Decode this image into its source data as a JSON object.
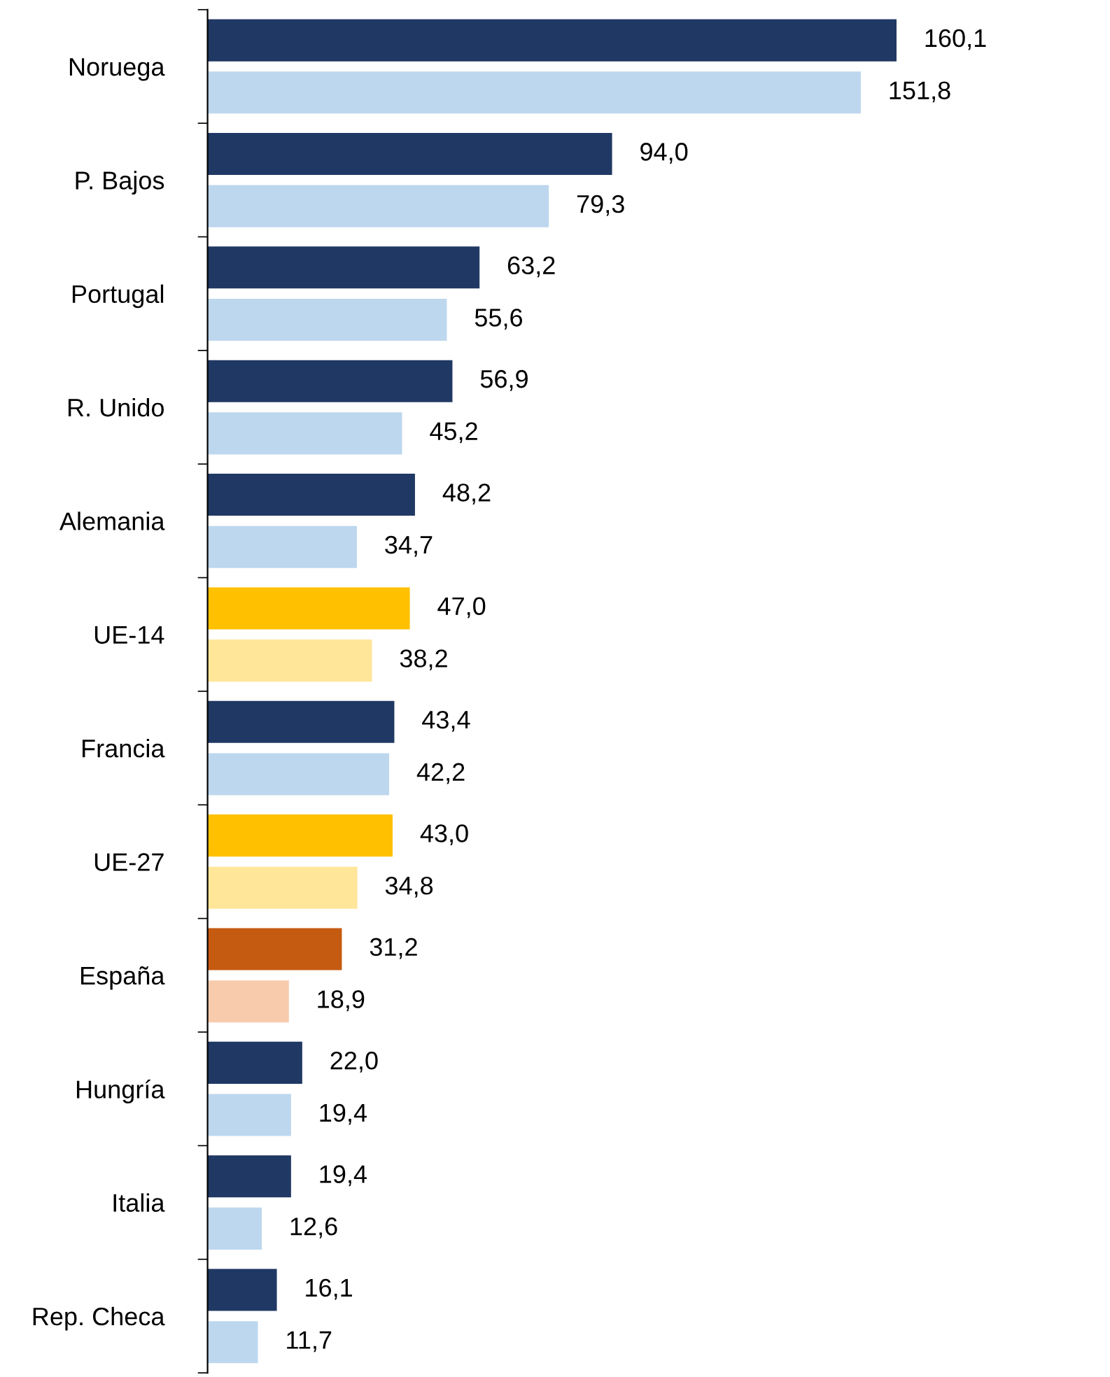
{
  "chart_data": {
    "type": "bar",
    "orientation": "horizontal",
    "categories": [
      "Noruega",
      "P. Bajos",
      "Portugal",
      "R. Unido",
      "Alemania",
      "UE-14",
      "Francia",
      "UE-27",
      "España",
      "Hungría",
      "Italia",
      "Rep. Checa"
    ],
    "series": [
      {
        "colors": [
          "#203864",
          "#203864",
          "#203864",
          "#203864",
          "#203864",
          "#ffc000",
          "#203864",
          "#ffc000",
          "#c55a11",
          "#203864",
          "#203864",
          "#203864"
        ],
        "values": [
          160.1,
          94.0,
          63.2,
          56.9,
          48.2,
          47.0,
          43.4,
          43.0,
          31.2,
          22.0,
          19.4,
          16.1
        ],
        "value_labels": [
          "160,1",
          "94,0",
          "63,2",
          "56,9",
          "48,2",
          "47,0",
          "43,4",
          "43,0",
          "31,2",
          "22,0",
          "19,4",
          "16,1"
        ]
      },
      {
        "colors": [
          "#bdd7ee",
          "#bdd7ee",
          "#bdd7ee",
          "#bdd7ee",
          "#bdd7ee",
          "#ffe699",
          "#bdd7ee",
          "#ffe699",
          "#f8cbad",
          "#bdd7ee",
          "#bdd7ee",
          "#bdd7ee"
        ],
        "values": [
          151.8,
          79.3,
          55.6,
          45.2,
          34.7,
          38.2,
          42.2,
          34.8,
          18.9,
          19.4,
          12.6,
          11.7
        ],
        "value_labels": [
          "151,8",
          "79,3",
          "55,6",
          "45,2",
          "34,7",
          "38,2",
          "42,2",
          "34,8",
          "18,9",
          "19,4",
          "12,6",
          "11,7"
        ]
      }
    ],
    "grid": false,
    "tick_labels": "y"
  }
}
